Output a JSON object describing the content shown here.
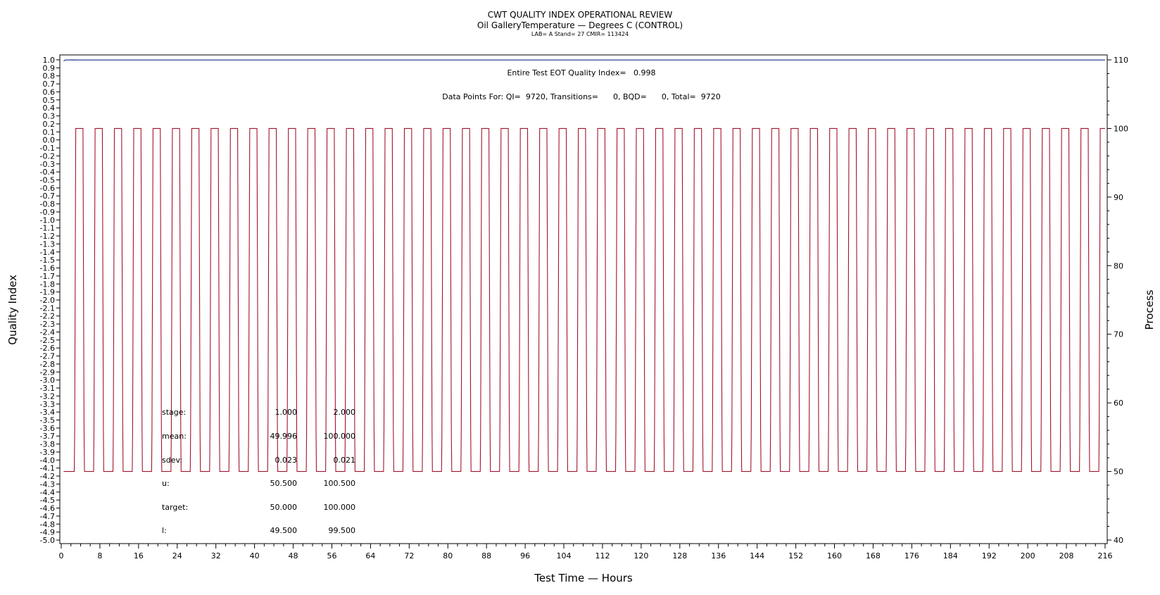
{
  "title": "CWT QUALITY INDEX OPERATIONAL REVIEW",
  "subtitle": "Oil GalleryTemperature — Degrees C (CONTROL)",
  "subsubtitle": "LAB= A Stand= 27 CMIR= 113424",
  "annotation_qi": "Entire Test EOT Quality Index=   0.998",
  "annotation_points": "Data Points For: QI=  9720, Transitions=      0, BQD=      0, Total=  9720",
  "colors": {
    "process": "#a4142c",
    "quality": "#1a2a8a",
    "frame": "#000000"
  },
  "stats": [
    {
      "label": "stage:",
      "v1": "1.000",
      "v2": "2.000"
    },
    {
      "label": "mean:",
      "v1": "49.996",
      "v2": "100.000"
    },
    {
      "label": "sdev:",
      "v1": "0.023",
      "v2": "0.021"
    },
    {
      "label": "u:",
      "v1": "50.500",
      "v2": "100.500"
    },
    {
      "label": "target:",
      "v1": "50.000",
      "v2": "100.000"
    },
    {
      "label": "l:",
      "v1": "49.500",
      "v2": "99.500"
    }
  ],
  "chart_data": {
    "type": "line",
    "xlabel": "Test Time — Hours",
    "ylabel": "Quality Index",
    "y2label": "Process",
    "xlim": [
      0,
      216
    ],
    "ylim": [
      -5.0,
      1.0
    ],
    "y2lim": [
      40,
      110
    ],
    "xticks": [
      "0",
      "8",
      "16",
      "24",
      "32",
      "40",
      "48",
      "56",
      "64",
      "72",
      "80",
      "88",
      "96",
      "104",
      "112",
      "120",
      "128",
      "136",
      "144",
      "152",
      "160",
      "168",
      "176",
      "184",
      "192",
      "200",
      "208",
      "216"
    ],
    "yticks_left": [
      "1.0",
      "0.9",
      "0.8",
      "0.7",
      "0.6",
      "0.5",
      "0.4",
      "0.3",
      "0.2",
      "0.1",
      "0.0",
      "-0.1",
      "-0.2",
      "-0.3",
      "-0.4",
      "-0.5",
      "-0.6",
      "-0.7",
      "-0.8",
      "-0.9",
      "-1.0",
      "-1.1",
      "-1.2",
      "-1.3",
      "-1.4",
      "-1.5",
      "-1.6",
      "-1.7",
      "-1.8",
      "-1.9",
      "-2.0",
      "-2.1",
      "-2.2",
      "-2.3",
      "-2.4",
      "-2.5",
      "-2.6",
      "-2.7",
      "-2.8",
      "-2.9",
      "-3.0",
      "-3.1",
      "-3.2",
      "-3.3",
      "-3.4",
      "-3.5",
      "-3.6",
      "-3.7",
      "-3.8",
      "-3.9",
      "-4.0",
      "-4.1",
      "-4.2",
      "-4.3",
      "-4.4",
      "-4.5",
      "-4.6",
      "-4.7",
      "-4.8",
      "-4.9",
      "-5.0"
    ],
    "yticks_right": [
      "110",
      "100",
      "90",
      "80",
      "70",
      "60",
      "50",
      "40"
    ],
    "series": [
      {
        "name": "",
        "axis": "right",
        "description_values": {
          "cycle_hours": 4,
          "low_value": 50.0,
          "high_value": 100.0,
          "first_rise_hour": 2.7,
          "low_hours": 1.9,
          "ramp_hours": 0.3
        }
      },
      {
        "name": "",
        "axis": "left",
        "description_values": {
          "start_hour": 0.5,
          "quality_value": 0.998,
          "dip_end_hour": 3.5,
          "dip_value": 0.985
        }
      }
    ]
  }
}
